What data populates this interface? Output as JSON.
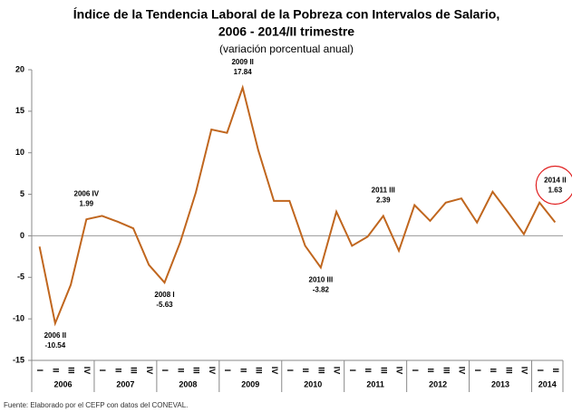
{
  "chart_data": {
    "type": "line",
    "title": "Índice de la Tendencia Laboral de la Pobreza con Intervalos de Salario,",
    "title_line2": "2006 - 2014/II trimestre",
    "subtitle": "(variación porcentual anual)",
    "source": "Fuente: Elaborado por el CEFP con datos del CONEVAL.",
    "categories": [
      "I",
      "II",
      "III",
      "IV",
      "I",
      "II",
      "III",
      "IV",
      "I",
      "II",
      "III",
      "IV",
      "I",
      "II",
      "III",
      "IV",
      "I",
      "II",
      "III",
      "IV",
      "I",
      "II",
      "III",
      "IV",
      "I",
      "II",
      "III",
      "IV",
      "I",
      "II",
      "III",
      "IV",
      "I",
      "II"
    ],
    "years": [
      "2006",
      "2007",
      "2008",
      "2009",
      "2010",
      "2011",
      "2012",
      "2013",
      "2014"
    ],
    "series": [
      {
        "color": "#c0661e",
        "values": [
          -1.3,
          -10.54,
          -5.9,
          1.99,
          2.4,
          1.7,
          0.9,
          -3.5,
          -5.63,
          -0.8,
          5.2,
          12.8,
          12.4,
          17.84,
          10.3,
          4.2,
          4.2,
          -1.2,
          -3.82,
          2.9,
          -1.2,
          -0.1,
          2.39,
          -1.8,
          3.7,
          1.8,
          4.0,
          4.5,
          1.6,
          5.3,
          2.8,
          0.2,
          4.0,
          1.63
        ],
        "point_labels": [
          null,
          "2006 II",
          null,
          "2006 IV",
          null,
          null,
          null,
          null,
          "2008 I",
          null,
          null,
          null,
          null,
          "2009 II",
          null,
          null,
          null,
          null,
          "2010 III",
          null,
          null,
          null,
          "2011 III",
          null,
          null,
          null,
          null,
          null,
          null,
          null,
          null,
          null,
          null,
          "2014 II"
        ]
      }
    ],
    "ylim": [
      -15,
      20
    ],
    "yticks": [
      -15,
      -10,
      -5,
      0,
      5,
      10,
      15,
      20
    ]
  }
}
